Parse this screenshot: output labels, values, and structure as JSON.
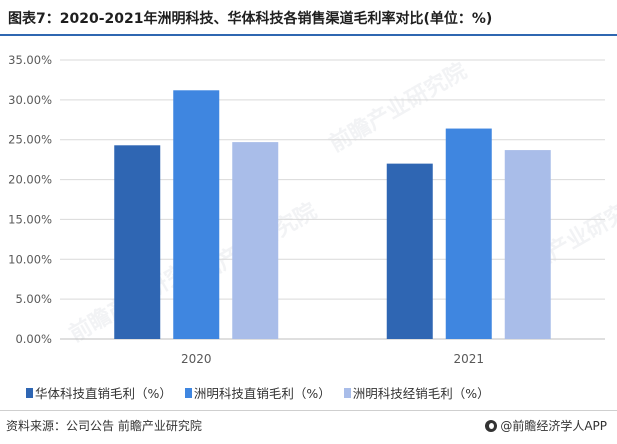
{
  "title": "图表7：2020-2021年洲明科技、华体科技各销售渠道毛利率对比(单位：%)",
  "colors": {
    "accent": "#2f67b1",
    "series": [
      "#2f66b3",
      "#3f86e0",
      "#a9bde9"
    ],
    "grid": "#d9d9d9",
    "axis_text": "#595959"
  },
  "chart_data": {
    "type": "bar",
    "categories": [
      "2020",
      "2021"
    ],
    "series": [
      {
        "name": "华体科技直销毛利（%）",
        "values": [
          24.3,
          22.0
        ]
      },
      {
        "name": "洲明科技直销毛利（%）",
        "values": [
          31.2,
          26.4
        ]
      },
      {
        "name": "洲明科技经销毛利（%）",
        "values": [
          24.7,
          23.7
        ]
      }
    ],
    "yticks": [
      "0.00%",
      "5.00%",
      "10.00%",
      "15.00%",
      "20.00%",
      "25.00%",
      "30.00%",
      "35.00%"
    ],
    "ylim": [
      0,
      35
    ],
    "grid": true,
    "legend": "bottom",
    "xlabel": "",
    "ylabel": ""
  },
  "footer": {
    "source": "资料来源：公司公告 前瞻产业研究院",
    "brand": "@前瞻经济学人APP"
  },
  "watermark": "前瞻产业研究院"
}
